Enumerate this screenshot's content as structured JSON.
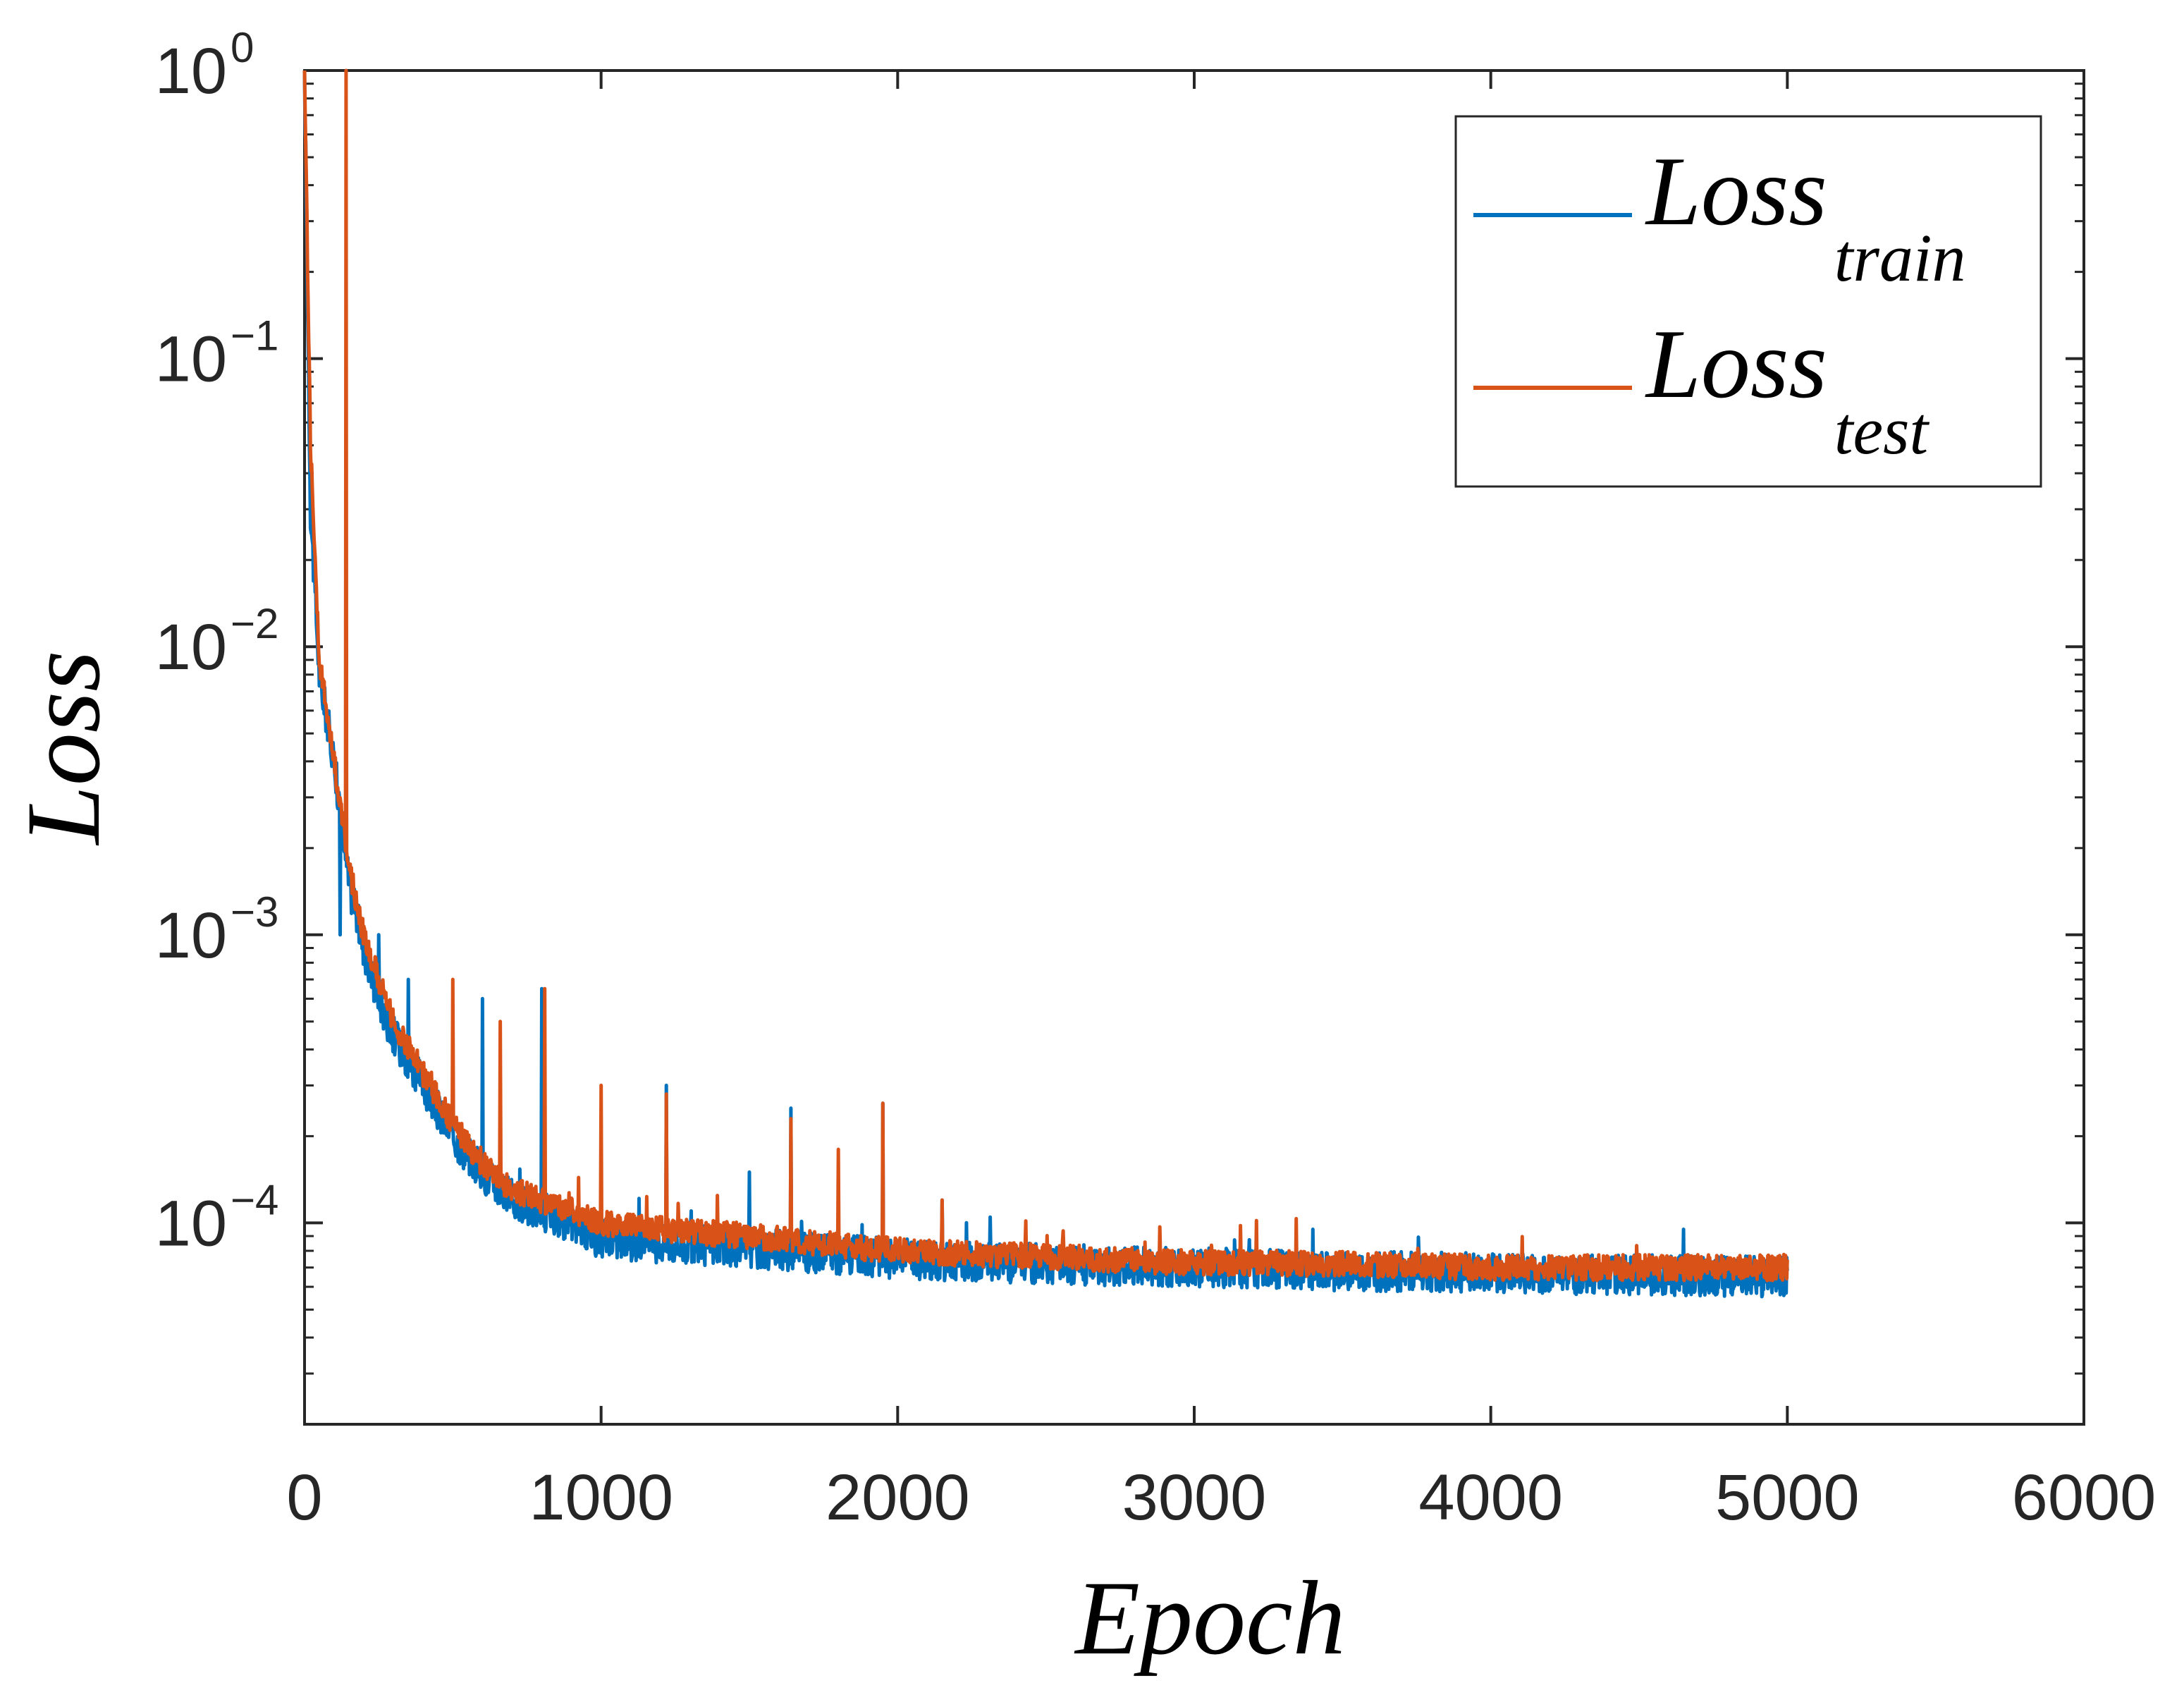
{
  "chart_data": {
    "type": "line",
    "xlabel": "Epoch",
    "ylabel": "Loss",
    "xlim": [
      0,
      6000
    ],
    "ylim": [
      2e-05,
      1
    ],
    "yscale": "log",
    "grid": false,
    "legend_position": "top-right",
    "x_ticks": [
      0,
      1000,
      2000,
      3000,
      4000,
      5000,
      6000
    ],
    "x_tick_labels": [
      "0",
      "1000",
      "2000",
      "3000",
      "4000",
      "5000",
      "6000"
    ],
    "y_ticks": [
      1,
      0.1,
      0.01,
      0.001,
      0.0001
    ],
    "y_tick_labels": [
      {
        "base": "10",
        "exp": "0"
      },
      {
        "base": "10",
        "exp": "−1"
      },
      {
        "base": "10",
        "exp": "−2"
      },
      {
        "base": "10",
        "exp": "−3"
      },
      {
        "base": "10",
        "exp": "−4"
      }
    ],
    "series": [
      {
        "name": "Loss",
        "subscript": "train",
        "color": "#0072BD",
        "x": [
          0,
          20,
          50,
          100,
          150,
          200,
          250,
          300,
          400,
          500,
          600,
          700,
          800,
          900,
          1000,
          1200,
          1500,
          2000,
          2500,
          3000,
          3500,
          4000,
          4300,
          4500,
          5000
        ],
        "y": [
          1.0,
          0.03,
          0.008,
          0.004,
          0.0015,
          0.0009,
          0.0006,
          0.00045,
          0.0003,
          0.0002,
          0.00015,
          0.00012,
          0.00011,
          0.0001,
          8.8e-05,
          8.5e-05,
          8.2e-05,
          7.5e-05,
          7.2e-05,
          7e-05,
          6.8e-05,
          6.7e-05,
          6.6e-05,
          6.6e-05,
          6.5e-05
        ],
        "spikes": [
          [
            120,
            0.001
          ],
          [
            250,
            0.001
          ],
          [
            350,
            0.0007
          ],
          [
            600,
            0.0006
          ],
          [
            800,
            0.00065
          ],
          [
            1220,
            0.0003
          ],
          [
            1500,
            0.00015
          ],
          [
            1640,
            0.00025
          ],
          [
            1950,
            0.00026
          ],
          [
            2150,
            0.00012
          ],
          [
            3400,
            9.5e-05
          ],
          [
            4650,
            9.5e-05
          ]
        ]
      },
      {
        "name": "Loss",
        "subscript": "test",
        "color": "#D95319",
        "x": [
          0,
          20,
          50,
          100,
          150,
          200,
          250,
          300,
          400,
          500,
          600,
          700,
          800,
          900,
          1000,
          1200,
          1500,
          2000,
          2500,
          3000,
          3500,
          4000,
          4300,
          4500,
          5000
        ],
        "y": [
          1.0,
          0.05,
          0.009,
          0.004,
          0.0017,
          0.001,
          0.0007,
          0.0005,
          0.00033,
          0.00022,
          0.00016,
          0.00013,
          0.00012,
          0.00011,
          0.0001,
          9.5e-05,
          9e-05,
          8e-05,
          7.6e-05,
          7.3e-05,
          7.2e-05,
          7e-05,
          7e-05,
          7e-05,
          7e-05
        ],
        "spikes": [
          [
            140,
            1.0
          ],
          [
            500,
            0.0007
          ],
          [
            660,
            0.0005
          ],
          [
            810,
            0.00065
          ],
          [
            1000,
            0.0003
          ],
          [
            1220,
            0.00028
          ],
          [
            1640,
            0.00023
          ],
          [
            1800,
            0.00018
          ],
          [
            1950,
            0.00026
          ],
          [
            2150,
            0.00012
          ]
        ]
      }
    ]
  }
}
